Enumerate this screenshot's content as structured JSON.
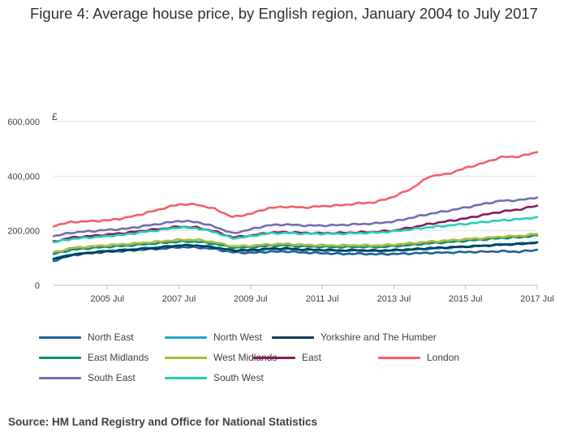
{
  "title": "Figure 4: Average house price, by English region, January 2004 to July 2017",
  "source": "Source: HM Land Registry and Office for National Statistics",
  "chart_data": {
    "type": "line",
    "title": "Figure 4: Average house price, by English region, January 2004 to July 2017",
    "ylabel": "£",
    "xlabel": "",
    "ylim": [
      0,
      600000
    ],
    "xlim": [
      "2004 Jan",
      "2017 Jul"
    ],
    "y_ticks": [
      "0",
      "200,000",
      "400,000",
      "600,000"
    ],
    "y_tick_values": [
      0,
      200000,
      400000,
      600000
    ],
    "x_ticks": [
      "2005 Jul",
      "2007 Jul",
      "2009 Jul",
      "2011 Jul",
      "2013 Jul",
      "2015 Jul",
      "2017 Jul"
    ],
    "x_tick_dates": [
      "2005-07",
      "2007-07",
      "2009-07",
      "2011-07",
      "2013-07",
      "2015-07",
      "2017-07"
    ],
    "grid": "horizontal",
    "legend_placement": "bottom",
    "x": [
      "2004-01",
      "2004-07",
      "2005-01",
      "2005-07",
      "2006-01",
      "2006-07",
      "2007-01",
      "2007-07",
      "2008-01",
      "2008-07",
      "2009-01",
      "2009-07",
      "2010-01",
      "2010-07",
      "2011-01",
      "2011-07",
      "2012-01",
      "2012-07",
      "2013-01",
      "2013-07",
      "2014-01",
      "2014-07",
      "2015-01",
      "2015-07",
      "2016-01",
      "2016-07",
      "2017-01",
      "2017-07"
    ],
    "series": [
      {
        "name": "North East",
        "color": "#206095",
        "values": [
          90000,
          110000,
          118000,
          123000,
          126000,
          131000,
          134000,
          140000,
          139000,
          133000,
          121000,
          119000,
          123000,
          124000,
          120000,
          118000,
          115000,
          116000,
          114000,
          115000,
          117000,
          119000,
          120000,
          122000,
          123000,
          125000,
          123000,
          130000
        ]
      },
      {
        "name": "North West",
        "color": "#27a0cc",
        "values": [
          98000,
          113000,
          120000,
          126000,
          130000,
          135000,
          140000,
          146000,
          146000,
          139000,
          126000,
          127000,
          132000,
          133000,
          129000,
          128000,
          126000,
          127000,
          125000,
          127000,
          130000,
          134000,
          137000,
          141000,
          145000,
          150000,
          153000,
          158000
        ]
      },
      {
        "name": "Yorkshire and The Humber",
        "color": "#003c57",
        "values": [
          96000,
          112000,
          119000,
          125000,
          129000,
          134000,
          139000,
          146000,
          146000,
          139000,
          128000,
          129000,
          134000,
          135000,
          131000,
          130000,
          128000,
          129000,
          127000,
          129000,
          132000,
          136000,
          139000,
          142000,
          145000,
          149000,
          151000,
          157000
        ]
      },
      {
        "name": "East Midlands",
        "color": "#118c7b",
        "values": [
          115000,
          130000,
          136000,
          141000,
          145000,
          150000,
          155000,
          160000,
          160000,
          152000,
          138000,
          139000,
          145000,
          146000,
          142000,
          141000,
          140000,
          141000,
          140000,
          143000,
          148000,
          154000,
          158000,
          163000,
          168000,
          173000,
          176000,
          183000
        ]
      },
      {
        "name": "West Midlands",
        "color": "#a8bd3a",
        "values": [
          120000,
          137000,
          142000,
          147000,
          151000,
          156000,
          161000,
          167000,
          167000,
          158000,
          143000,
          145000,
          150000,
          152000,
          148000,
          147000,
          146000,
          147000,
          146000,
          149000,
          154000,
          160000,
          164000,
          169000,
          173000,
          178000,
          181000,
          188000
        ]
      },
      {
        "name": "East",
        "color": "#871a5b",
        "values": [
          160000,
          175000,
          180000,
          186000,
          192000,
          200000,
          207000,
          215000,
          212000,
          198000,
          176000,
          182000,
          193000,
          195000,
          192000,
          191000,
          192000,
          194000,
          196000,
          201000,
          212000,
          225000,
          235000,
          245000,
          258000,
          270000,
          278000,
          292000
        ]
      },
      {
        "name": "London",
        "color": "#f66068",
        "values": [
          218000,
          232000,
          235000,
          238000,
          247000,
          262000,
          280000,
          297000,
          296000,
          280000,
          250000,
          262000,
          283000,
          288000,
          285000,
          290000,
          293000,
          300000,
          305000,
          325000,
          355000,
          400000,
          408000,
          430000,
          448000,
          470000,
          472000,
          488000
        ]
      },
      {
        "name": "South East",
        "color": "#746cb1",
        "values": [
          180000,
          193000,
          198000,
          203000,
          207000,
          217000,
          226000,
          236000,
          232000,
          215000,
          190000,
          205000,
          220000,
          223000,
          219000,
          219000,
          221000,
          224000,
          227000,
          234000,
          248000,
          262000,
          273000,
          285000,
          298000,
          310000,
          312000,
          322000
        ]
      },
      {
        "name": "South West",
        "color": "#22d0b6",
        "values": [
          158000,
          170000,
          175000,
          180000,
          186000,
          195000,
          203000,
          212000,
          209000,
          195000,
          172000,
          180000,
          190000,
          192000,
          189000,
          189000,
          189000,
          191000,
          193000,
          198000,
          205000,
          213000,
          219000,
          225000,
          232000,
          238000,
          242000,
          250000
        ]
      }
    ]
  }
}
